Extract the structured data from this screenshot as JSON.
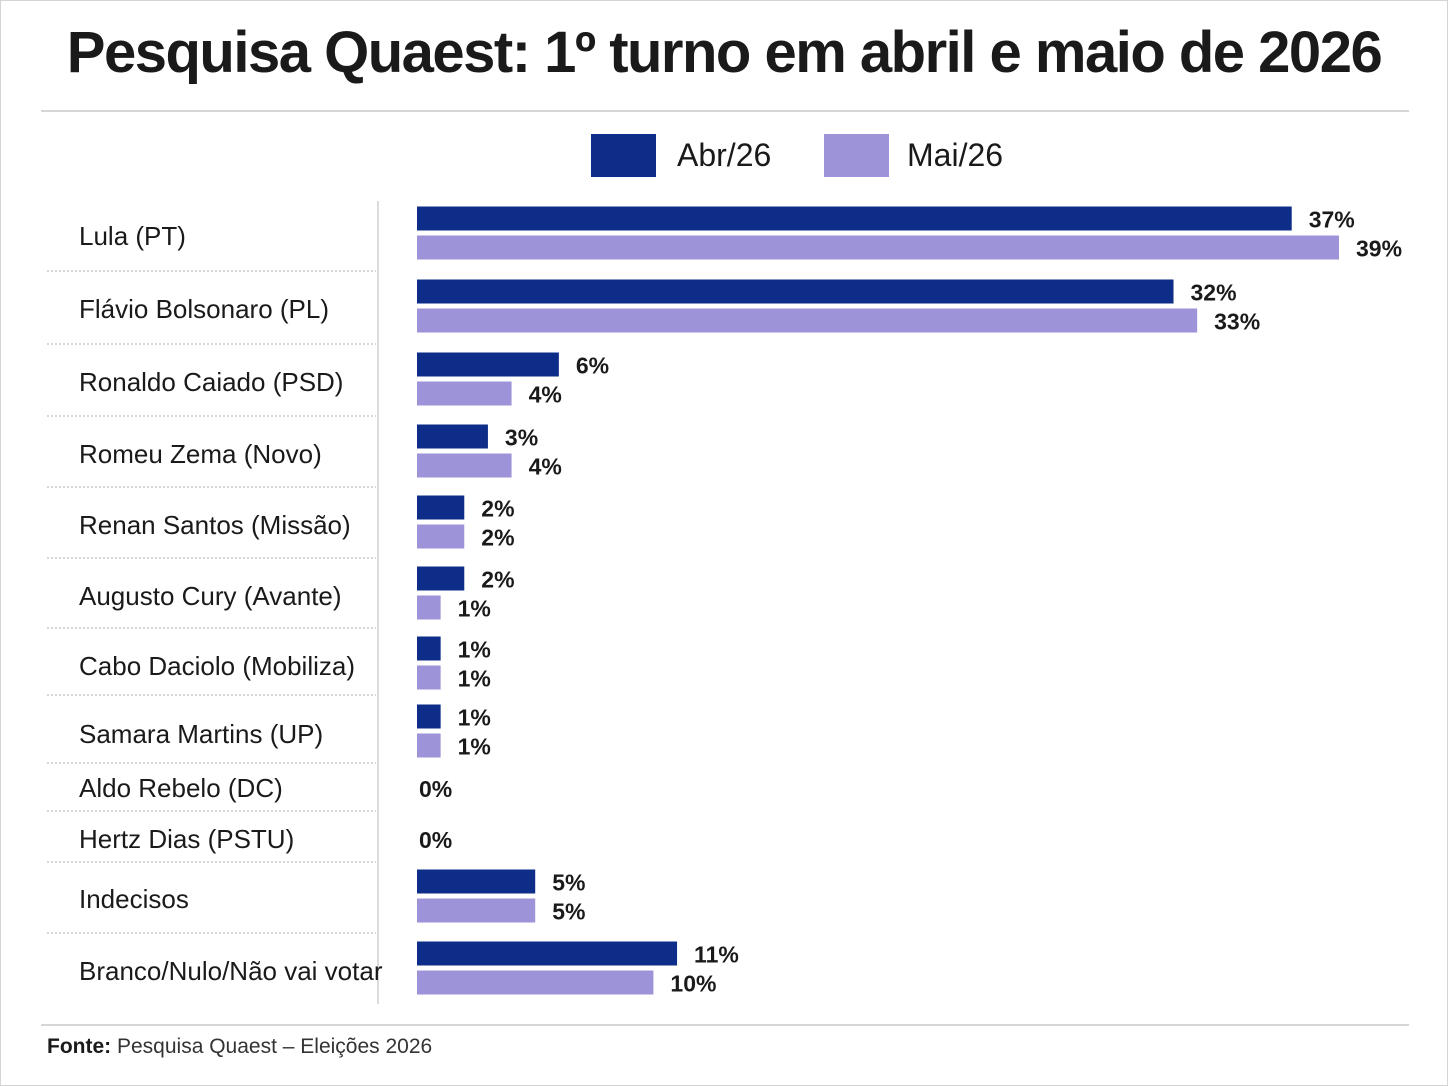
{
  "title": "Pesquisa Quaest: 1º turno em abril e maio de 2026",
  "legend": {
    "series_a": "Abr/26",
    "series_b": "Mai/26"
  },
  "footer": {
    "label": "Fonte:",
    "text": "Pesquisa Quaest – Eleições 2026"
  },
  "colors": {
    "abr": "#0d2d88",
    "mai": "#9d93d8"
  },
  "chart_data": {
    "type": "bar",
    "orientation": "horizontal",
    "title": "Pesquisa Quaest: 1º turno em abril e maio de 2026",
    "categories": [
      "Lula (PT)",
      "Flávio Bolsonaro (PL)",
      "Ronaldo Caiado (PSD)",
      "Romeu Zema (Novo)",
      "Renan Santos (Missão)",
      "Augusto Cury (Avante)",
      "Cabo Daciolo (Mobiliza)",
      "Samara Martins (UP)",
      "Aldo Rebelo (DC)",
      "Hertz Dias (PSTU)",
      "Indecisos",
      "Branco/Nulo/Não vai votar"
    ],
    "series": [
      {
        "name": "Abr/26",
        "color": "#0d2d88",
        "values": [
          37,
          32,
          6,
          3,
          2,
          2,
          1,
          1,
          0,
          0,
          5,
          11
        ],
        "labels": [
          "37%",
          "32%",
          "6%",
          "3%",
          "2%",
          "2%",
          "1%",
          "1%",
          "0%",
          "0%",
          "5%",
          "11%"
        ]
      },
      {
        "name": "Mai/26",
        "color": "#9d93d8",
        "values": [
          39,
          33,
          4,
          4,
          2,
          1,
          1,
          1,
          null,
          null,
          5,
          10
        ],
        "labels": [
          "39%",
          "33%",
          "4%",
          "4%",
          "2%",
          "1%",
          "1%",
          "1%",
          "",
          "",
          "5%",
          "10%"
        ]
      }
    ],
    "unit": "%",
    "xlim": [
      0,
      39
    ],
    "grid": false,
    "legend_position": "top-center"
  }
}
